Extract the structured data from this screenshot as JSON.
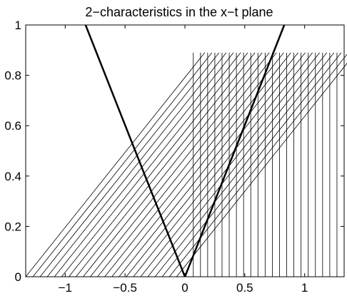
{
  "chart_data": {
    "type": "line",
    "title": "2−characteristics in the x−t plane",
    "xlabel": "",
    "ylabel": "",
    "xlim": [
      -1.33,
      1.33
    ],
    "ylim": [
      0,
      1
    ],
    "grid": false,
    "xticks": [
      -1,
      -0.5,
      0,
      0.5,
      1
    ],
    "xtick_labels": [
      "−1",
      "−0.5",
      "0",
      "0.5",
      "1"
    ],
    "yticks": [
      0,
      0.2,
      0.4,
      0.6,
      0.8,
      1
    ],
    "ytick_labels": [
      "0",
      "0.2",
      "0.4",
      "0.6",
      "0.8",
      "1"
    ],
    "series": [
      {
        "role": "left-boundary",
        "style": "thick",
        "x": [
          0,
          -0.83
        ],
        "y": [
          0,
          1
        ]
      },
      {
        "role": "right-boundary",
        "style": "thick",
        "x": [
          0,
          0.83
        ],
        "y": [
          0,
          1
        ]
      },
      {
        "role": "slanted-characteristics",
        "style": "thin",
        "start_x": [
          -1.33,
          -1.27,
          -1.21,
          -1.15,
          -1.09,
          -1.03,
          -0.97,
          -0.91,
          -0.85,
          -0.79,
          -0.73,
          -0.67,
          -0.61,
          -0.55,
          -0.49,
          -0.43,
          -0.37,
          -0.31,
          -0.25,
          -0.19,
          -0.13,
          -0.07
        ],
        "slope_dx_dt": 1.68,
        "t_end": 0.89
      },
      {
        "role": "vertical-characteristics",
        "style": "thin",
        "x": [
          0.07,
          0.13,
          0.19,
          0.25,
          0.31,
          0.37,
          0.43,
          0.49,
          0.55,
          0.61,
          0.67,
          0.73,
          0.79,
          0.85,
          0.91,
          0.97,
          1.03,
          1.09,
          1.15,
          1.21,
          1.27,
          1.33
        ],
        "t_end": 0.89
      }
    ]
  }
}
